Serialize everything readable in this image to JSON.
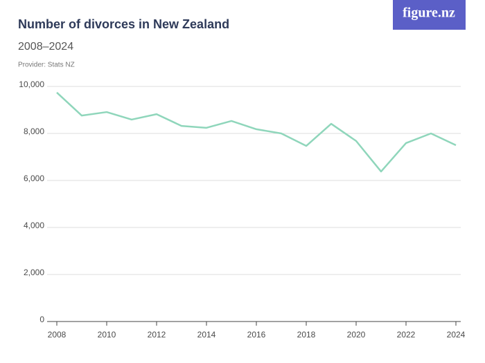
{
  "brand": "figure.nz",
  "chart_data": {
    "type": "line",
    "title": "Number of divorces in New Zealand",
    "subtitle": "2008–2024",
    "source": "Provider: Stats NZ",
    "x": [
      2008,
      2009,
      2010,
      2011,
      2012,
      2013,
      2014,
      2015,
      2016,
      2017,
      2018,
      2019,
      2020,
      2021,
      2022,
      2023,
      2024
    ],
    "series": [
      {
        "name": "Divorces",
        "color": "#8fd6bb",
        "values": [
          9740,
          8760,
          8910,
          8590,
          8820,
          8320,
          8240,
          8530,
          8180,
          8000,
          7470,
          8410,
          7680,
          6380,
          7590,
          8000,
          7500
        ]
      }
    ],
    "xlim": [
      2008,
      2024
    ],
    "xticks": [
      2008,
      2010,
      2012,
      2014,
      2016,
      2018,
      2020,
      2022,
      2024
    ],
    "ylim": [
      0,
      10000
    ],
    "yticks": [
      0,
      {
        "value": 2000,
        "label": "2,000"
      },
      {
        "value": 4000,
        "label": "4,000"
      },
      {
        "value": 6000,
        "label": "6,000"
      },
      {
        "value": 8000,
        "label": "8,000"
      },
      {
        "value": 10000,
        "label": "10,000"
      }
    ],
    "grid": true
  }
}
